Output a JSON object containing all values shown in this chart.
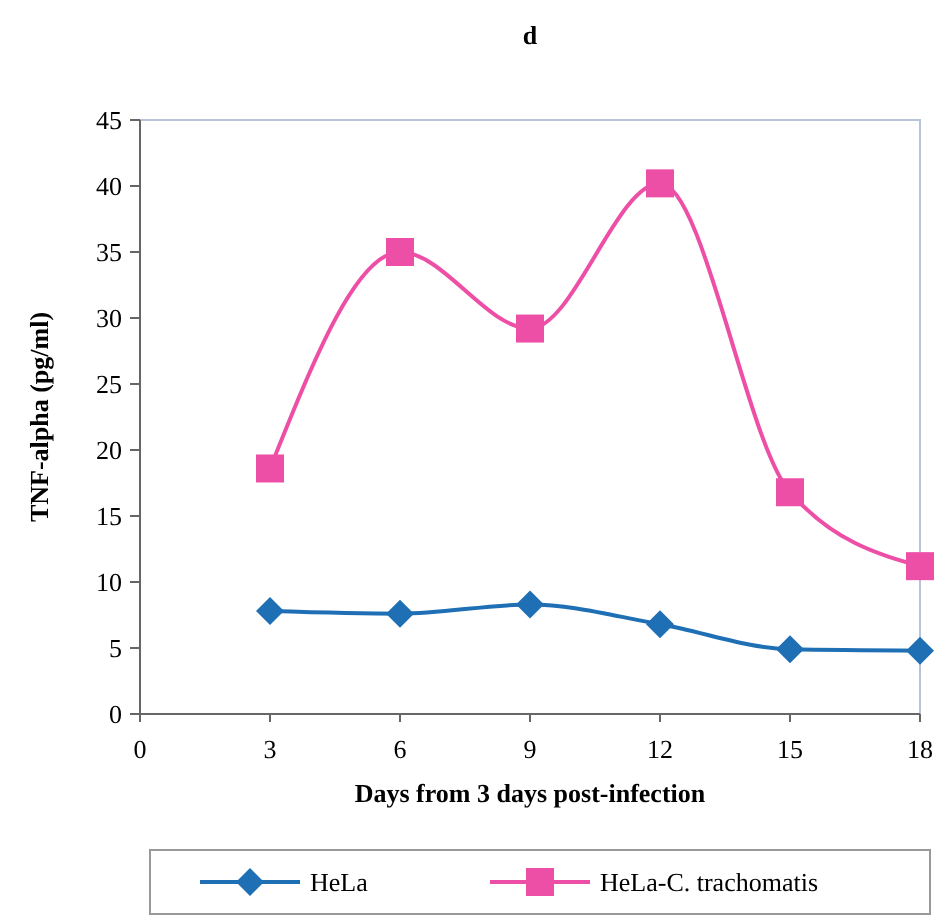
{
  "chart_data": {
    "type": "line",
    "title": "d",
    "xlabel": "Days from 3 days post-infection",
    "ylabel": "TNF-alpha (pg/ml)",
    "x": [
      3,
      6,
      9,
      12,
      15,
      18
    ],
    "series": [
      {
        "name": "HeLa",
        "color": "#1f6fb5",
        "marker": "diamond",
        "values": [
          7.8,
          7.6,
          8.3,
          6.8,
          4.9,
          4.8
        ]
      },
      {
        "name": "HeLa-C. trachomatis",
        "color": "#ee4fa6",
        "marker": "square",
        "values": [
          18.6,
          35,
          29.2,
          40.2,
          16.8,
          11.2
        ]
      }
    ],
    "xlim": [
      0,
      18
    ],
    "xticks": [
      0,
      3,
      6,
      9,
      12,
      15,
      18
    ],
    "ylim": [
      0,
      45
    ],
    "yticks": [
      0,
      5,
      10,
      15,
      20,
      25,
      30,
      35,
      40,
      45
    ],
    "grid": false,
    "legend": "bottom"
  }
}
